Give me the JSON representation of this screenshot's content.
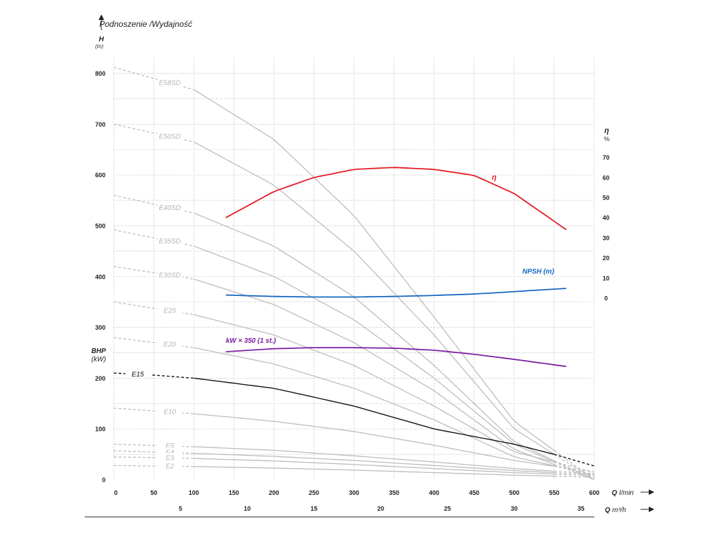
{
  "chart_data": {
    "type": "line",
    "title": "Podnoszenie /Wydajność",
    "y_left": {
      "label": "H",
      "unit": "(m)",
      "range": [
        0,
        850
      ],
      "ticks": [
        0,
        100,
        200,
        300,
        400,
        500,
        600,
        700,
        800
      ]
    },
    "y_left_secondary": {
      "label": "BHP",
      "unit": "(kW)"
    },
    "y_right": {
      "label": "η",
      "unit": "%",
      "ticks": [
        0,
        10,
        20,
        30,
        40,
        50,
        60,
        70
      ]
    },
    "x_primary": {
      "label": "Q",
      "unit": "l/min",
      "range": [
        0,
        600
      ],
      "ticks": [
        0,
        50,
        100,
        150,
        200,
        250,
        300,
        350,
        400,
        450,
        500,
        550,
        600
      ]
    },
    "x_secondary": {
      "label": "Q",
      "unit": "m³/h",
      "ticks": [
        5,
        10,
        15,
        20,
        25,
        30,
        35
      ]
    },
    "grid": true,
    "pump_curves": [
      {
        "name": "E58SD",
        "x": [
          0,
          100,
          200,
          300,
          400,
          500,
          600
        ],
        "y": [
          812,
          768,
          670,
          520,
          320,
          115,
          0
        ]
      },
      {
        "name": "E50SD",
        "x": [
          0,
          100,
          200,
          300,
          400,
          500,
          600
        ],
        "y": [
          700,
          665,
          580,
          450,
          285,
          100,
          0
        ]
      },
      {
        "name": "E40SD",
        "x": [
          0,
          100,
          200,
          300,
          400,
          500,
          600
        ],
        "y": [
          560,
          525,
          460,
          360,
          225,
          75,
          0
        ]
      },
      {
        "name": "E35SD",
        "x": [
          0,
          100,
          200,
          300,
          400,
          500,
          600
        ],
        "y": [
          492,
          460,
          400,
          315,
          200,
          70,
          0
        ]
      },
      {
        "name": "E30SD",
        "x": [
          0,
          100,
          200,
          300,
          400,
          500,
          600
        ],
        "y": [
          420,
          395,
          345,
          270,
          175,
          60,
          0
        ]
      },
      {
        "name": "E25",
        "x": [
          0,
          100,
          200,
          300,
          400,
          500,
          600
        ],
        "y": [
          350,
          325,
          285,
          225,
          145,
          55,
          15
        ]
      },
      {
        "name": "E20",
        "x": [
          0,
          100,
          200,
          300,
          400,
          500,
          600
        ],
        "y": [
          280,
          260,
          228,
          180,
          118,
          45,
          10
        ]
      },
      {
        "name": "E15",
        "x": [
          0,
          50,
          100,
          200,
          300,
          400,
          500,
          550,
          600
        ],
        "y": [
          210,
          206,
          200,
          180,
          145,
          100,
          70,
          50,
          27
        ]
      },
      {
        "name": "E10",
        "x": [
          0,
          100,
          200,
          300,
          400,
          500,
          600
        ],
        "y": [
          141,
          130,
          115,
          95,
          68,
          38,
          15
        ]
      },
      {
        "name": "E5",
        "x": [
          0,
          100,
          200,
          300,
          400,
          500,
          600
        ],
        "y": [
          70,
          65,
          58,
          47,
          35,
          22,
          12
        ]
      },
      {
        "name": "E4",
        "x": [
          0,
          100,
          200,
          300,
          400,
          500,
          600
        ],
        "y": [
          57,
          52,
          46,
          38,
          28,
          18,
          10
        ]
      },
      {
        "name": "E3",
        "x": [
          0,
          100,
          200,
          300,
          400,
          500,
          600
        ],
        "y": [
          45,
          42,
          37,
          30,
          22,
          14,
          8
        ]
      },
      {
        "name": "E2",
        "x": [
          0,
          100,
          200,
          300,
          400,
          500,
          600
        ],
        "y": [
          28,
          26,
          23,
          19,
          14,
          9,
          5
        ]
      }
    ],
    "efficiency": {
      "name": "η",
      "x": [
        140,
        200,
        250,
        300,
        350,
        400,
        450,
        500,
        565
      ],
      "y": [
        40,
        53,
        60,
        64,
        65,
        64,
        61,
        52,
        34
      ]
    },
    "npsh": {
      "name": "NPSH (m)",
      "x": [
        140,
        200,
        250,
        300,
        350,
        400,
        450,
        500,
        565
      ],
      "y": [
        1.5,
        0.8,
        0.5,
        0.5,
        0.8,
        1.3,
        2.0,
        3.2,
        4.8
      ]
    },
    "power": {
      "name": "kW × 350 (1 st.)",
      "x": [
        140,
        200,
        250,
        300,
        350,
        400,
        450,
        500,
        565
      ],
      "y": [
        252,
        258,
        260,
        260,
        259,
        255,
        247,
        237,
        223
      ]
    }
  }
}
